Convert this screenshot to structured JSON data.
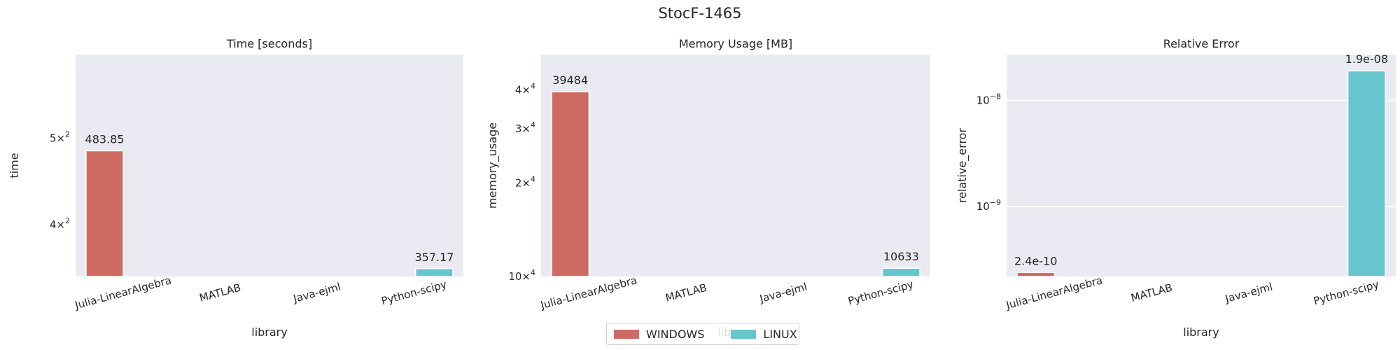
{
  "figure": {
    "title": "StocF-1465"
  },
  "legend": {
    "entries": [
      {
        "label": "WINDOWS",
        "color": "#CD6B63"
      },
      {
        "label": "LINUX",
        "color": "#67C5CD"
      }
    ]
  },
  "chart_data": [
    {
      "type": "bar",
      "title": "Time [seconds]",
      "xlabel": "library",
      "ylabel": "time",
      "yscale": "log",
      "categories": [
        "Julia-LinearAlgebra",
        "MATLAB",
        "Java-ejml",
        "Python-scipy"
      ],
      "series": [
        {
          "name": "WINDOWS",
          "color": "#CD6B63",
          "values": [
            483.85,
            null,
            null,
            null
          ]
        },
        {
          "name": "LINUX",
          "color": "#67C5CD",
          "values": [
            null,
            null,
            null,
            357.17
          ]
        }
      ],
      "data_labels": [
        "483.85",
        "357.17"
      ],
      "yticks": [
        {
          "value": 400,
          "base": "4",
          "exp": "2"
        },
        {
          "value": 500,
          "base": "5",
          "exp": "2"
        }
      ],
      "ylim": [
        350,
        620
      ],
      "grid": false
    },
    {
      "type": "bar",
      "title": "Memory Usage [MB]",
      "xlabel": "library",
      "ylabel": "memory_usage",
      "yscale": "log",
      "categories": [
        "Julia-LinearAlgebra",
        "MATLAB",
        "Java-ejml",
        "Python-scipy"
      ],
      "series": [
        {
          "name": "WINDOWS",
          "color": "#CD6B63",
          "values": [
            39484,
            null,
            null,
            null
          ]
        },
        {
          "name": "LINUX",
          "color": "#67C5CD",
          "values": [
            null,
            null,
            null,
            10633
          ]
        }
      ],
      "data_labels": [
        "39484",
        "10633"
      ],
      "yticks": [
        {
          "value": 10000,
          "base": "10",
          "exp": "4"
        },
        {
          "value": 20000,
          "base": "2",
          "exp": "4"
        },
        {
          "value": 30000,
          "base": "3",
          "exp": "4"
        },
        {
          "value": 40000,
          "base": "4",
          "exp": "4"
        }
      ],
      "ylim": [
        10000,
        52000
      ],
      "grid": false
    },
    {
      "type": "bar",
      "title": "Relative Error",
      "xlabel": "library",
      "ylabel": "relative_error",
      "yscale": "log",
      "categories": [
        "Julia-LinearAlgebra",
        "MATLAB",
        "Java-ejml",
        "Python-scipy"
      ],
      "series": [
        {
          "name": "WINDOWS",
          "color": "#CD6B63",
          "values": [
            2.4e-10,
            null,
            null,
            null
          ]
        },
        {
          "name": "LINUX",
          "color": "#67C5CD",
          "values": [
            null,
            null,
            null,
            1.9e-08
          ]
        }
      ],
      "data_labels": [
        "2.4e-10",
        "1.9e-08"
      ],
      "yticks": [
        {
          "value": 1e-09,
          "base": "10",
          "exp": "−9"
        },
        {
          "value": 1e-08,
          "base": "10",
          "exp": "−8"
        }
      ],
      "ylim": [
        2.2e-10,
        2.7e-08
      ],
      "grid": true
    }
  ]
}
